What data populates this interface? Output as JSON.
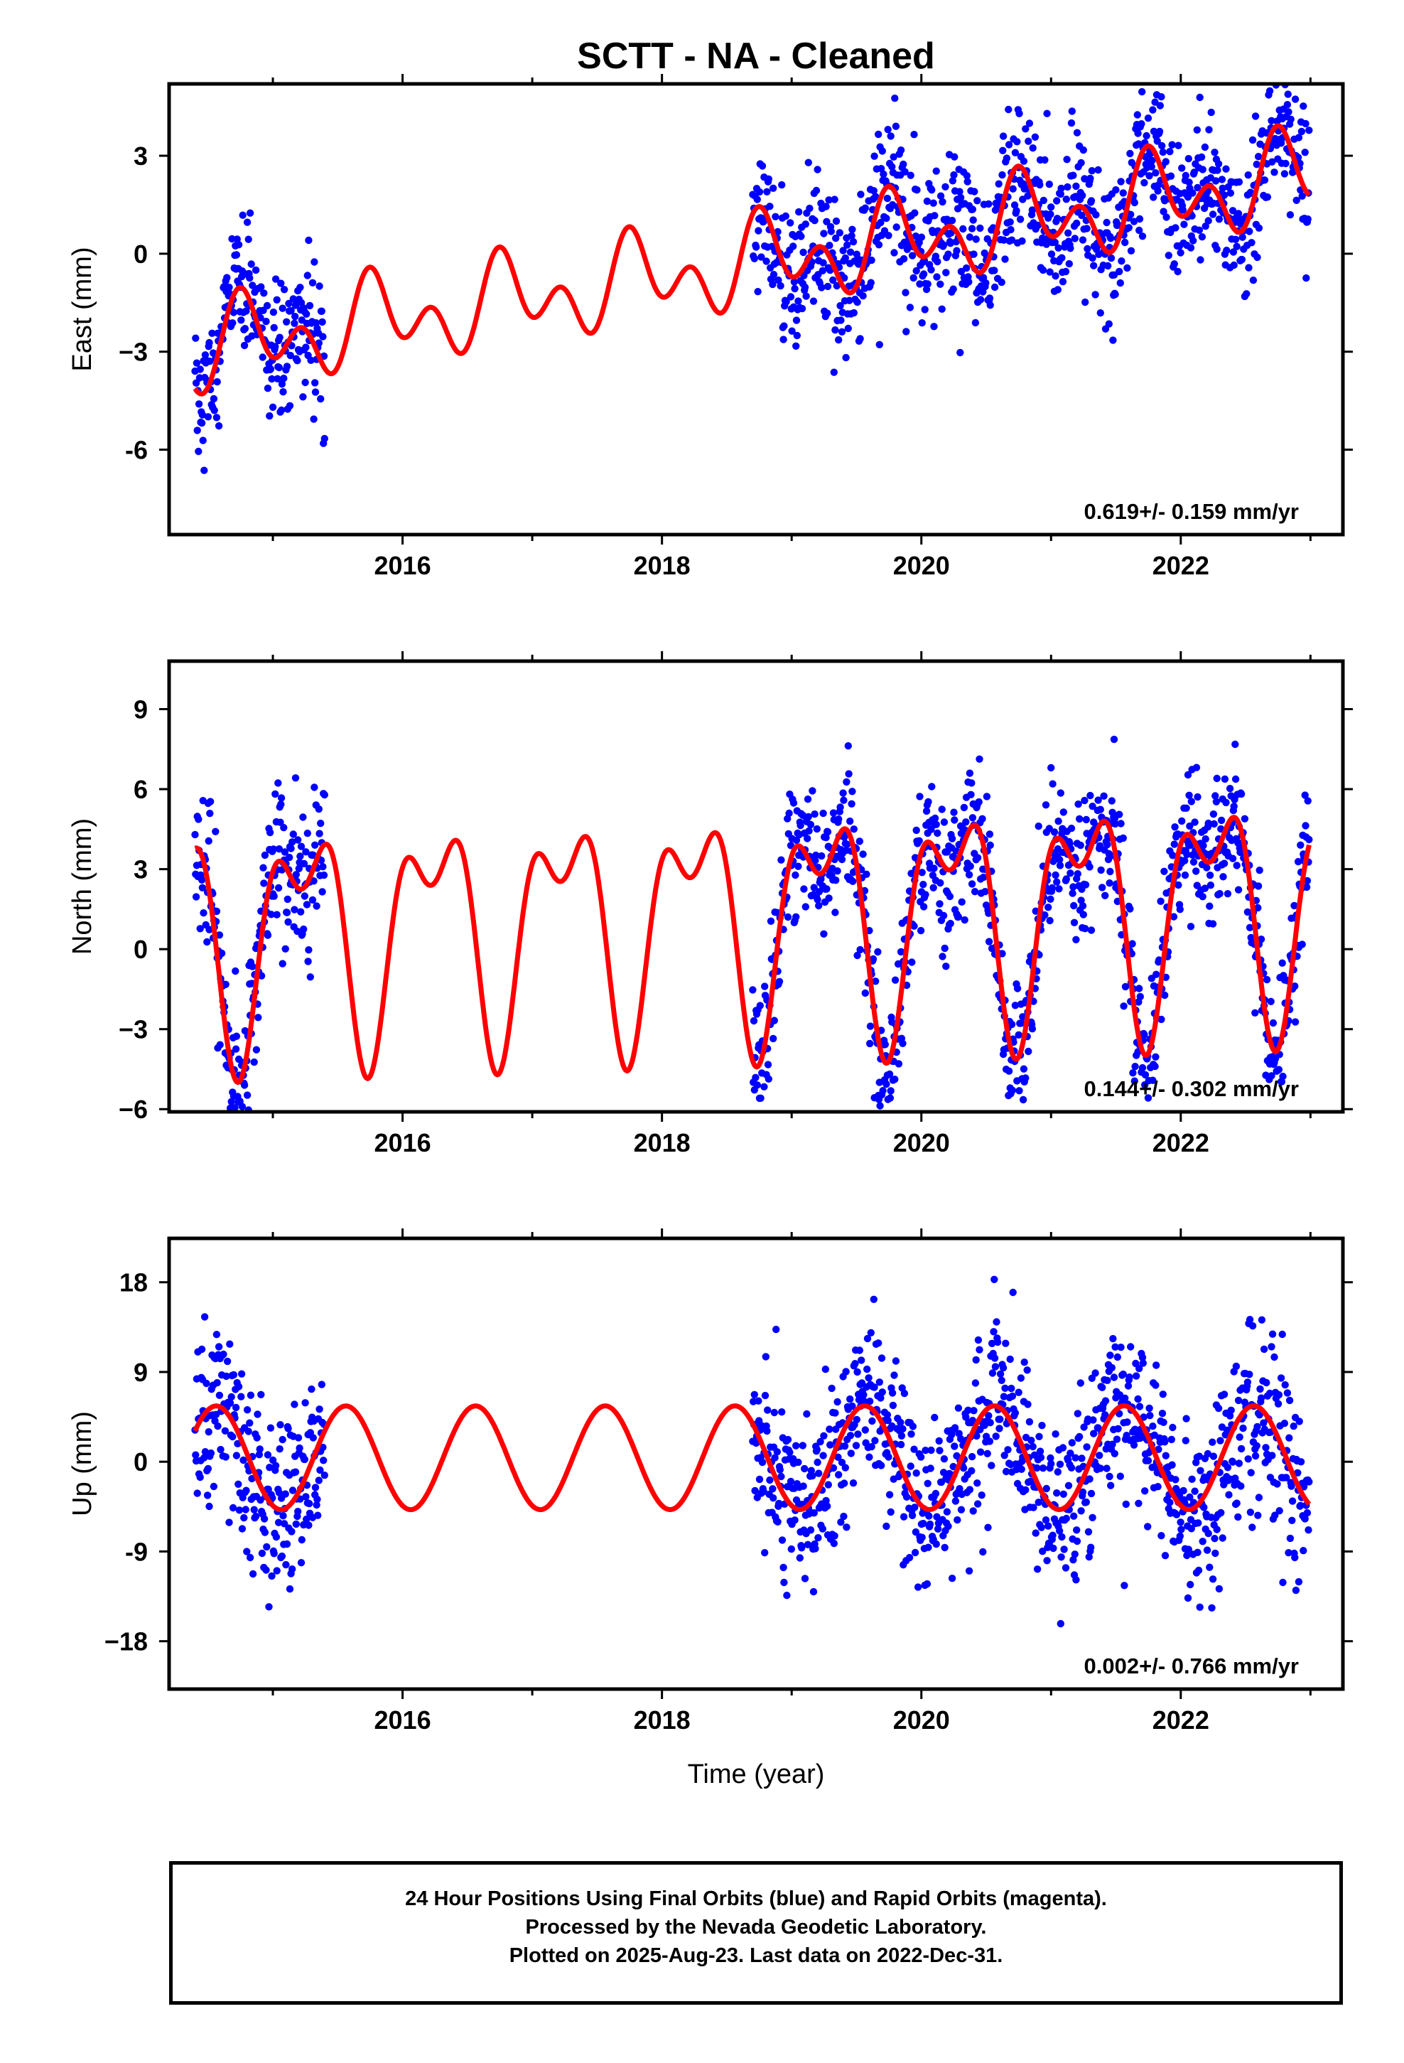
{
  "chart_data": {
    "title": "SCTT  - NA - Cleaned",
    "x_label": "Time (year)",
    "x_ticks": [
      2016,
      2018,
      2020,
      2022
    ],
    "x_range": [
      2014.2,
      2023.25
    ],
    "data_segments": [
      [
        2014.4,
        2015.4
      ],
      [
        2018.7,
        2022.99
      ]
    ],
    "fit_range": [
      2014.4,
      2022.99
    ],
    "colors": {
      "data": "#0000ff",
      "model": "#ff0000",
      "frame": "#000000"
    },
    "panels": [
      {
        "name": "east",
        "type": "scatter",
        "ylabel": "East (mm)",
        "ylim": [
          -8.6,
          5.2
        ],
        "yticks": [
          3,
          0,
          -3,
          -6
        ],
        "ytick_labels": [
          "3",
          "0",
          "−3",
          "-6"
        ],
        "rate_text": "0.619+/- 0.159 mm/yr",
        "model": {
          "type": "line",
          "trend_mm_per_yr": 0.619,
          "annual_sin": -0.8,
          "annual_cos": 0.3,
          "semiannual_sin": 0.2,
          "semiannual_cos": -0.9,
          "offset": -0.1,
          "ref_year": 2019.0
        },
        "scatter_noise_mm": 1.1,
        "series": [
          {
            "name": "Final Orbits",
            "role": "daily-positions",
            "color": "#0000ff"
          },
          {
            "name": "Model fit",
            "role": "trend+seasonal",
            "color": "#ff0000"
          }
        ]
      },
      {
        "name": "north",
        "type": "scatter",
        "ylabel": "North (mm)",
        "ylim": [
          -6.1,
          10.8
        ],
        "yticks": [
          9,
          6,
          3,
          0,
          -3,
          -6
        ],
        "ytick_labels": [
          "9",
          "6",
          "3",
          "0",
          "−3",
          "−6"
        ],
        "rate_text": "0.144+/- 0.302 mm/yr",
        "model": {
          "type": "line",
          "trend_mm_per_yr": 0.144,
          "annual_sin": 3.6,
          "annual_cos": 0.2,
          "semiannual_sin": -0.6,
          "semiannual_cos": 2.0,
          "offset": 1.3,
          "ref_year": 2019.0
        },
        "scatter_noise_mm": 1.3,
        "series": [
          {
            "name": "Final Orbits",
            "role": "daily-positions",
            "color": "#0000ff"
          },
          {
            "name": "Model fit",
            "role": "trend+seasonal",
            "color": "#ff0000"
          }
        ]
      },
      {
        "name": "up",
        "type": "scatter",
        "ylabel": "Up (mm)",
        "ylim": [
          -22.8,
          22.4
        ],
        "yticks": [
          18,
          9,
          0,
          -9,
          -18
        ],
        "ytick_labels": [
          "18",
          "9",
          "0",
          "-9",
          "−18"
        ],
        "rate_text": "0.002+/- 0.766 mm/yr",
        "model": {
          "type": "line",
          "trend_mm_per_yr": 0.002,
          "annual_sin": -2.0,
          "annual_cos": -4.8,
          "semiannual_sin": 0.0,
          "semiannual_cos": 0.0,
          "offset": 0.4,
          "ref_year": 2019.0
        },
        "scatter_noise_mm": 4.5,
        "series": [
          {
            "name": "Final Orbits",
            "role": "daily-positions",
            "color": "#0000ff"
          },
          {
            "name": "Model fit",
            "role": "trend+seasonal",
            "color": "#ff0000"
          }
        ]
      }
    ]
  },
  "footer": {
    "line1": "24 Hour Positions Using Final Orbits (blue) and Rapid Orbits (magenta).",
    "line2": "Processed by the Nevada Geodetic Laboratory.",
    "line3": "Plotted on 2025-Aug-23. Last data on 2022-Dec-31."
  }
}
